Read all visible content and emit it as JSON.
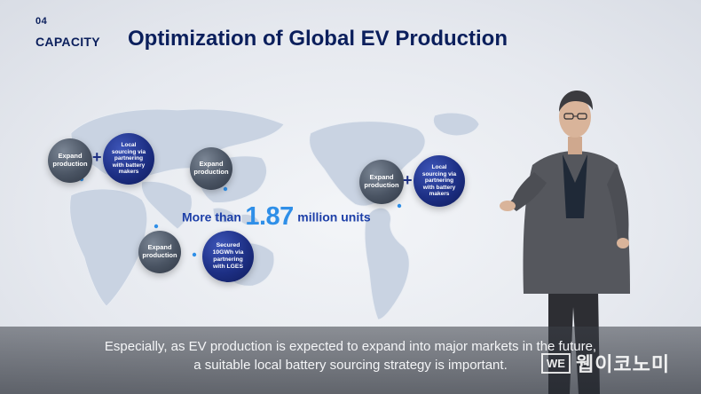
{
  "header": {
    "section_number": "04",
    "section_name": "CAPACITY",
    "title": "Optimization of Global EV Production"
  },
  "map_bubbles": {
    "europe_expand": "Expand production",
    "europe_sourcing": "Local sourcing via partnering with battery makers",
    "asia_expand": "Expand production",
    "sea_expand": "Expand production",
    "sea_secured": "Secured 10GWh via partnering with LGES",
    "na_expand": "Expand production",
    "na_sourcing": "Local sourcing via partnering with battery makers"
  },
  "stat": {
    "prefix": "More than",
    "number": "1.87",
    "suffix": "million units"
  },
  "subtitles": {
    "line1": "Especially, as EV production is expected to expand into major markets in the future,",
    "line2": "a suitable local battery sourcing strategy is important."
  },
  "watermark": {
    "badge": "WE",
    "text": "웹이코노미"
  },
  "colors": {
    "title_navy": "#0b1f5c",
    "accent_blue": "#2f8fe8",
    "bubble_blue": "#1d2f84",
    "bubble_grey": "#4a5463"
  }
}
